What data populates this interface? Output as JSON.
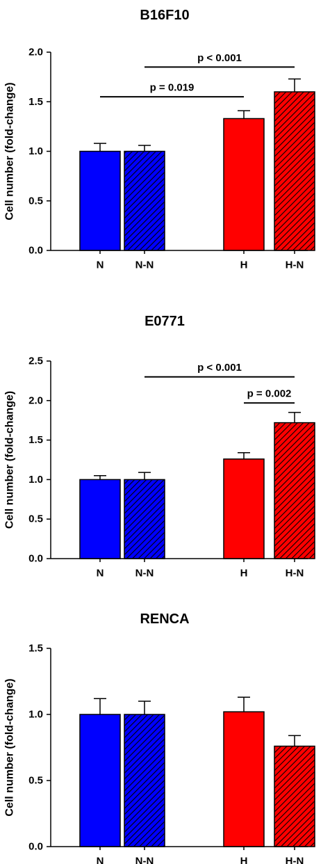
{
  "colors": {
    "blue": "#0000ff",
    "red": "#ff0000",
    "axis": "#000000"
  },
  "chart_data": [
    {
      "type": "bar",
      "title": "B16F10",
      "ylabel": "Cell number (fold-change)",
      "categories": [
        "N",
        "N-N",
        "H",
        "H-N"
      ],
      "values": [
        1.0,
        1.0,
        1.33,
        1.6
      ],
      "errors": [
        0.08,
        0.06,
        0.08,
        0.13
      ],
      "fills": [
        "solid",
        "hatched",
        "solid",
        "hatched"
      ],
      "bar_colors": [
        "blue",
        "blue",
        "red",
        "red"
      ],
      "ylim": [
        0,
        2.0
      ],
      "yticks": [
        "0.0",
        "0.5",
        "1.0",
        "1.5",
        "2.0"
      ],
      "comparisons": [
        {
          "from": "N",
          "to": "H",
          "label": "p = 0.019",
          "y": 1.55
        },
        {
          "from": "N-N",
          "to": "H-N",
          "label": "p < 0.001",
          "y": 1.85
        }
      ]
    },
    {
      "type": "bar",
      "title": "E0771",
      "ylabel": "Cell number (fold-change)",
      "categories": [
        "N",
        "N-N",
        "H",
        "H-N"
      ],
      "values": [
        1.0,
        1.0,
        1.26,
        1.72
      ],
      "errors": [
        0.05,
        0.09,
        0.08,
        0.13
      ],
      "fills": [
        "solid",
        "hatched",
        "solid",
        "hatched"
      ],
      "bar_colors": [
        "blue",
        "blue",
        "red",
        "red"
      ],
      "ylim": [
        0,
        2.5
      ],
      "yticks": [
        "0.0",
        "0.5",
        "1.0",
        "1.5",
        "2.0",
        "2.5"
      ],
      "comparisons": [
        {
          "from": "N-N",
          "to": "H-N",
          "label": "p < 0.001",
          "y": 2.3
        },
        {
          "from": "H",
          "to": "H-N",
          "label": "p = 0.002",
          "y": 1.97
        }
      ]
    },
    {
      "type": "bar",
      "title": "RENCA",
      "ylabel": "Cell number (fold-change)",
      "categories": [
        "N",
        "N-N",
        "H",
        "H-N"
      ],
      "values": [
        1.0,
        1.0,
        1.02,
        0.76
      ],
      "errors": [
        0.12,
        0.1,
        0.11,
        0.08
      ],
      "fills": [
        "solid",
        "hatched",
        "solid",
        "hatched"
      ],
      "bar_colors": [
        "blue",
        "blue",
        "red",
        "red"
      ],
      "ylim": [
        0,
        1.5
      ],
      "yticks": [
        "0.0",
        "0.5",
        "1.0",
        "1.5"
      ],
      "comparisons": []
    }
  ]
}
